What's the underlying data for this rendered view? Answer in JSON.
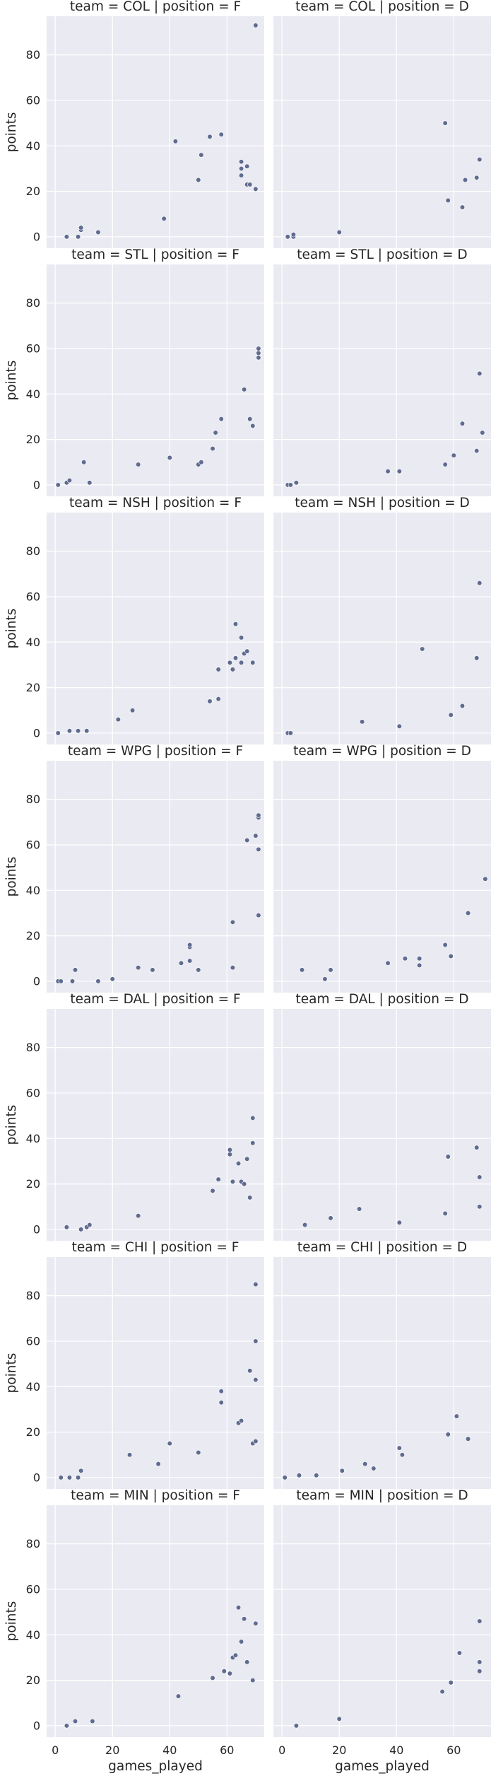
{
  "chart_data": {
    "type": "scatter",
    "layout": "facet-grid",
    "x_field": "games_played",
    "y_field": "points",
    "xlabel": "games_played",
    "ylabel": "points",
    "xlim": [
      -3,
      73
    ],
    "ylim": [
      -5,
      97
    ],
    "xticks": [
      0,
      20,
      40,
      60
    ],
    "yticks": [
      0,
      20,
      40,
      60,
      80
    ],
    "grid": true,
    "marker_color": "#5f6b8f",
    "panel_background": "#eaeaf2",
    "panels": [
      {
        "title": "team = COL | position = F",
        "points": [
          [
            4,
            0
          ],
          [
            8,
            0
          ],
          [
            9,
            3
          ],
          [
            9,
            4
          ],
          [
            15,
            2
          ],
          [
            38,
            8
          ],
          [
            42,
            42
          ],
          [
            50,
            25
          ],
          [
            51,
            36
          ],
          [
            54,
            44
          ],
          [
            58,
            45
          ],
          [
            65,
            33
          ],
          [
            65,
            27
          ],
          [
            65,
            30
          ],
          [
            67,
            23
          ],
          [
            67,
            31
          ],
          [
            68,
            23
          ],
          [
            70,
            21
          ],
          [
            70,
            93
          ]
        ]
      },
      {
        "title": "team = COL | position = D",
        "points": [
          [
            2,
            0
          ],
          [
            4,
            0
          ],
          [
            4,
            1
          ],
          [
            20,
            2
          ],
          [
            57,
            50
          ],
          [
            58,
            16
          ],
          [
            63,
            13
          ],
          [
            64,
            25
          ],
          [
            68,
            26
          ],
          [
            69,
            34
          ]
        ]
      },
      {
        "title": "team = STL | position = F",
        "points": [
          [
            1,
            0
          ],
          [
            4,
            1
          ],
          [
            5,
            2
          ],
          [
            10,
            10
          ],
          [
            12,
            1
          ],
          [
            29,
            9
          ],
          [
            40,
            12
          ],
          [
            50,
            9
          ],
          [
            51,
            10
          ],
          [
            55,
            16
          ],
          [
            56,
            23
          ],
          [
            58,
            29
          ],
          [
            66,
            42
          ],
          [
            68,
            29
          ],
          [
            69,
            26
          ],
          [
            71,
            56
          ],
          [
            71,
            58
          ],
          [
            71,
            60
          ]
        ]
      },
      {
        "title": "team = STL | position = D",
        "points": [
          [
            2,
            0
          ],
          [
            3,
            0
          ],
          [
            5,
            1
          ],
          [
            37,
            6
          ],
          [
            41,
            6
          ],
          [
            57,
            9
          ],
          [
            60,
            13
          ],
          [
            63,
            27
          ],
          [
            68,
            15
          ],
          [
            69,
            49
          ],
          [
            70,
            23
          ]
        ]
      },
      {
        "title": "team = NSH | position = F",
        "points": [
          [
            1,
            0
          ],
          [
            5,
            1
          ],
          [
            8,
            1
          ],
          [
            11,
            1
          ],
          [
            22,
            6
          ],
          [
            27,
            10
          ],
          [
            54,
            14
          ],
          [
            57,
            15
          ],
          [
            57,
            28
          ],
          [
            61,
            31
          ],
          [
            62,
            28
          ],
          [
            63,
            33
          ],
          [
            63,
            48
          ],
          [
            65,
            42
          ],
          [
            65,
            31
          ],
          [
            66,
            35
          ],
          [
            67,
            36
          ],
          [
            69,
            31
          ]
        ]
      },
      {
        "title": "team = NSH | position = D",
        "points": [
          [
            2,
            0
          ],
          [
            3,
            0
          ],
          [
            28,
            5
          ],
          [
            41,
            3
          ],
          [
            49,
            37
          ],
          [
            59,
            8
          ],
          [
            63,
            12
          ],
          [
            68,
            33
          ],
          [
            69,
            66
          ]
        ]
      },
      {
        "title": "team = WPG | position = F",
        "points": [
          [
            1,
            0
          ],
          [
            2,
            0
          ],
          [
            6,
            0
          ],
          [
            7,
            5
          ],
          [
            15,
            0
          ],
          [
            20,
            1
          ],
          [
            29,
            6
          ],
          [
            34,
            5
          ],
          [
            44,
            8
          ],
          [
            47,
            9
          ],
          [
            47,
            15
          ],
          [
            47,
            16
          ],
          [
            50,
            5
          ],
          [
            62,
            26
          ],
          [
            62,
            6
          ],
          [
            67,
            62
          ],
          [
            70,
            64
          ],
          [
            71,
            29
          ],
          [
            71,
            58
          ],
          [
            71,
            72
          ],
          [
            71,
            73
          ]
        ]
      },
      {
        "title": "team = WPG | position = D",
        "points": [
          [
            7,
            5
          ],
          [
            15,
            1
          ],
          [
            17,
            5
          ],
          [
            37,
            8
          ],
          [
            43,
            10
          ],
          [
            48,
            7
          ],
          [
            48,
            10
          ],
          [
            57,
            16
          ],
          [
            59,
            11
          ],
          [
            65,
            30
          ],
          [
            71,
            45
          ]
        ]
      },
      {
        "title": "team = DAL | position = F",
        "points": [
          [
            4,
            1
          ],
          [
            9,
            0
          ],
          [
            11,
            1
          ],
          [
            12,
            2
          ],
          [
            29,
            6
          ],
          [
            55,
            17
          ],
          [
            57,
            22
          ],
          [
            61,
            33
          ],
          [
            61,
            35
          ],
          [
            62,
            21
          ],
          [
            64,
            29
          ],
          [
            65,
            21
          ],
          [
            66,
            20
          ],
          [
            67,
            31
          ],
          [
            68,
            14
          ],
          [
            69,
            38
          ],
          [
            69,
            49
          ]
        ]
      },
      {
        "title": "team = DAL | position = D",
        "points": [
          [
            8,
            2
          ],
          [
            17,
            5
          ],
          [
            27,
            9
          ],
          [
            41,
            3
          ],
          [
            57,
            7
          ],
          [
            58,
            32
          ],
          [
            68,
            36
          ],
          [
            69,
            23
          ],
          [
            69,
            10
          ]
        ]
      },
      {
        "title": "team = CHI | position = F",
        "points": [
          [
            2,
            0
          ],
          [
            5,
            0
          ],
          [
            8,
            0
          ],
          [
            9,
            3
          ],
          [
            26,
            10
          ],
          [
            36,
            6
          ],
          [
            40,
            15
          ],
          [
            50,
            11
          ],
          [
            58,
            33
          ],
          [
            58,
            38
          ],
          [
            64,
            24
          ],
          [
            65,
            25
          ],
          [
            68,
            47
          ],
          [
            69,
            15
          ],
          [
            70,
            16
          ],
          [
            70,
            43
          ],
          [
            70,
            60
          ],
          [
            70,
            85
          ]
        ]
      },
      {
        "title": "team = CHI | position = D",
        "points": [
          [
            1,
            0
          ],
          [
            6,
            1
          ],
          [
            12,
            1
          ],
          [
            21,
            3
          ],
          [
            29,
            6
          ],
          [
            32,
            4
          ],
          [
            41,
            13
          ],
          [
            42,
            10
          ],
          [
            58,
            19
          ],
          [
            61,
            27
          ],
          [
            65,
            17
          ]
        ]
      },
      {
        "title": "team = MIN | position = F",
        "points": [
          [
            4,
            0
          ],
          [
            7,
            2
          ],
          [
            13,
            2
          ],
          [
            43,
            13
          ],
          [
            55,
            21
          ],
          [
            59,
            24
          ],
          [
            61,
            23
          ],
          [
            62,
            30
          ],
          [
            63,
            31
          ],
          [
            64,
            52
          ],
          [
            65,
            37
          ],
          [
            66,
            47
          ],
          [
            67,
            28
          ],
          [
            69,
            20
          ],
          [
            70,
            45
          ]
        ]
      },
      {
        "title": "team = MIN | position = D",
        "points": [
          [
            5,
            0
          ],
          [
            20,
            3
          ],
          [
            56,
            15
          ],
          [
            59,
            19
          ],
          [
            62,
            32
          ],
          [
            69,
            24
          ],
          [
            69,
            28
          ],
          [
            69,
            46
          ]
        ]
      }
    ]
  }
}
